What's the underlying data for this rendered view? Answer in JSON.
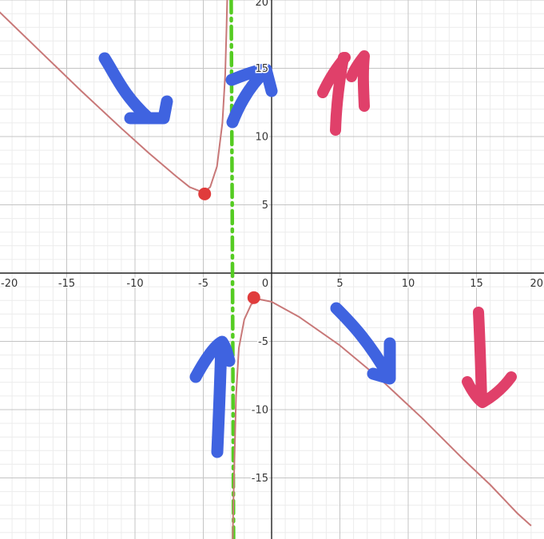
{
  "chart_data": {
    "type": "line",
    "xlim": [
      -20,
      20
    ],
    "ylim": [
      -19.5,
      20
    ],
    "grid": true,
    "minor_grid": true,
    "x_tick_labels": [
      {
        "value": -20,
        "label": "-20"
      },
      {
        "value": -15,
        "label": "-15"
      },
      {
        "value": -10,
        "label": "-10"
      },
      {
        "value": -5,
        "label": "-5"
      },
      {
        "value": 0,
        "label": "0"
      },
      {
        "value": 5,
        "label": "5"
      },
      {
        "value": 10,
        "label": "10"
      },
      {
        "value": 15,
        "label": "15"
      },
      {
        "value": 20,
        "label": "20"
      }
    ],
    "y_tick_labels": [
      {
        "value": 20,
        "label": "20"
      },
      {
        "value": 15,
        "label": "15"
      },
      {
        "value": 10,
        "label": "10"
      },
      {
        "value": 5,
        "label": "5"
      },
      {
        "value": -5,
        "label": "-5"
      },
      {
        "value": -10,
        "label": "-10"
      },
      {
        "value": -15,
        "label": "-15"
      }
    ],
    "series": [
      {
        "color": "#c87878",
        "points": [
          [
            -20,
            19.2
          ],
          [
            -17,
            16.3
          ],
          [
            -14,
            13.4
          ],
          [
            -11,
            10.6
          ],
          [
            -9,
            8.8
          ],
          [
            -7,
            7.1
          ],
          [
            -6,
            6.3
          ],
          [
            -5,
            5.9
          ],
          [
            -4.5,
            6.3
          ],
          [
            -4,
            7.8
          ],
          [
            -3.6,
            11
          ],
          [
            -3.4,
            14.5
          ],
          [
            -3.3,
            18
          ],
          [
            -3.25,
            20
          ]
        ]
      },
      {
        "color": "#c87878",
        "points": [
          [
            -2.85,
            -19.5
          ],
          [
            -2.8,
            -17
          ],
          [
            -2.7,
            -13
          ],
          [
            -2.6,
            -9
          ],
          [
            -2.4,
            -5.5
          ],
          [
            -2,
            -3.4
          ],
          [
            -1.5,
            -2.3
          ],
          [
            -1,
            -1.9
          ],
          [
            0,
            -2.1
          ],
          [
            2,
            -3.2
          ],
          [
            5,
            -5.3
          ],
          [
            8,
            -7.8
          ],
          [
            11,
            -10.6
          ],
          [
            14,
            -13.6
          ],
          [
            16,
            -15.5
          ],
          [
            18,
            -17.6
          ],
          [
            19,
            -18.5
          ]
        ]
      }
    ],
    "points": [
      {
        "x": -4.9,
        "y": 5.8,
        "color": "#e03c3c"
      },
      {
        "x": -1.3,
        "y": -1.8,
        "color": "#e03c3c"
      }
    ],
    "asymptote": {
      "x": -2.9,
      "color": "#55cc22",
      "style": "dash-dot"
    },
    "annotations": {
      "blue": "#3f63e0",
      "red": "#e0406a"
    }
  }
}
